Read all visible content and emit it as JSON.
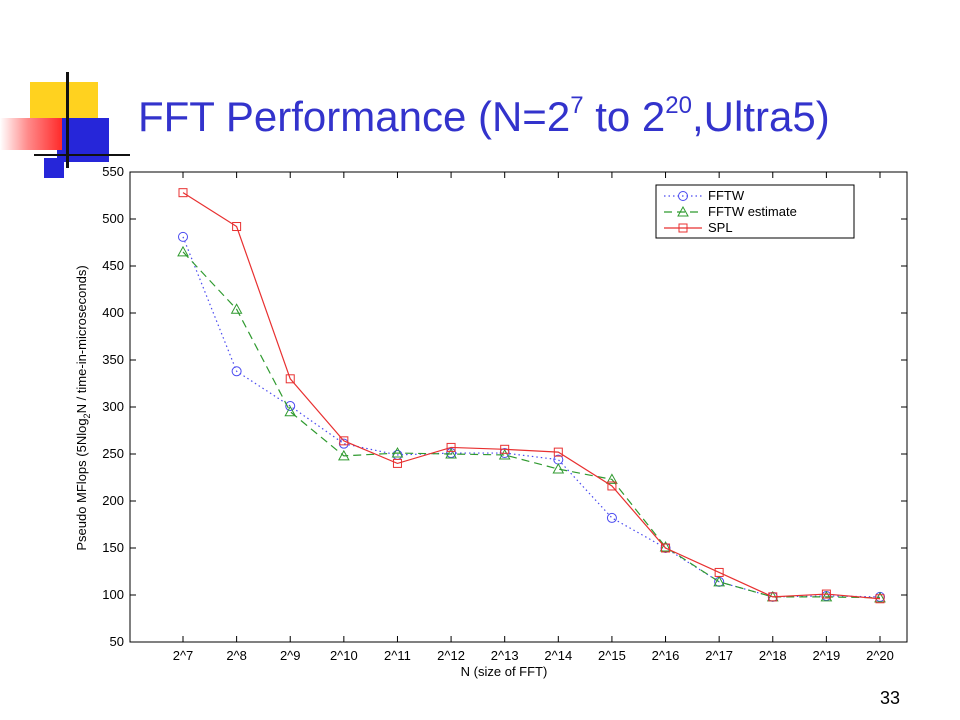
{
  "slide": {
    "title_main": "FFT Performance (N=2",
    "title_sup1": "7",
    "title_mid": " to 2",
    "title_sup2": "20",
    "title_end": ",Ultra5)",
    "page_number": "33",
    "accent_colors": {
      "title": "#3333cc",
      "deco_yellow": "#ffd21f",
      "deco_blue": "#2626d9",
      "deco_red": "#ff3b3b"
    }
  },
  "chart_data": {
    "type": "line",
    "categories": [
      "2^7",
      "2^8",
      "2^9",
      "2^10",
      "2^11",
      "2^12",
      "2^13",
      "2^14",
      "2^15",
      "2^16",
      "2^17",
      "2^18",
      "2^19",
      "2^20"
    ],
    "xlabel": "N (size of FFT)",
    "ylabel_part1": "Pseudo MFlops (5Nlog",
    "ylabel_sub": "2",
    "ylabel_part2": "N / time-in-microseconds)",
    "ylim": [
      50,
      550
    ],
    "yticks": [
      50,
      100,
      150,
      200,
      250,
      300,
      350,
      400,
      450,
      500,
      550
    ],
    "grid": false,
    "legend_position": "top-right",
    "series": [
      {
        "name": "FFTW",
        "color": "#4a4af0",
        "marker": "circle",
        "dash": "dotted",
        "values": [
          481,
          338,
          301,
          261,
          249,
          251,
          251,
          244,
          182,
          150,
          114,
          98,
          99,
          98
        ]
      },
      {
        "name": "FFTW estimate",
        "color": "#2f9a2f",
        "marker": "triangle",
        "dash": "dashed",
        "values": [
          465,
          404,
          295,
          248,
          251,
          250,
          249,
          234,
          223,
          151,
          114,
          98,
          98,
          97
        ]
      },
      {
        "name": "SPL",
        "color": "#e83030",
        "marker": "square",
        "dash": "solid",
        "values": [
          528,
          492,
          330,
          264,
          240,
          257,
          255,
          252,
          216,
          150,
          124,
          98,
          101,
          96
        ]
      }
    ]
  }
}
